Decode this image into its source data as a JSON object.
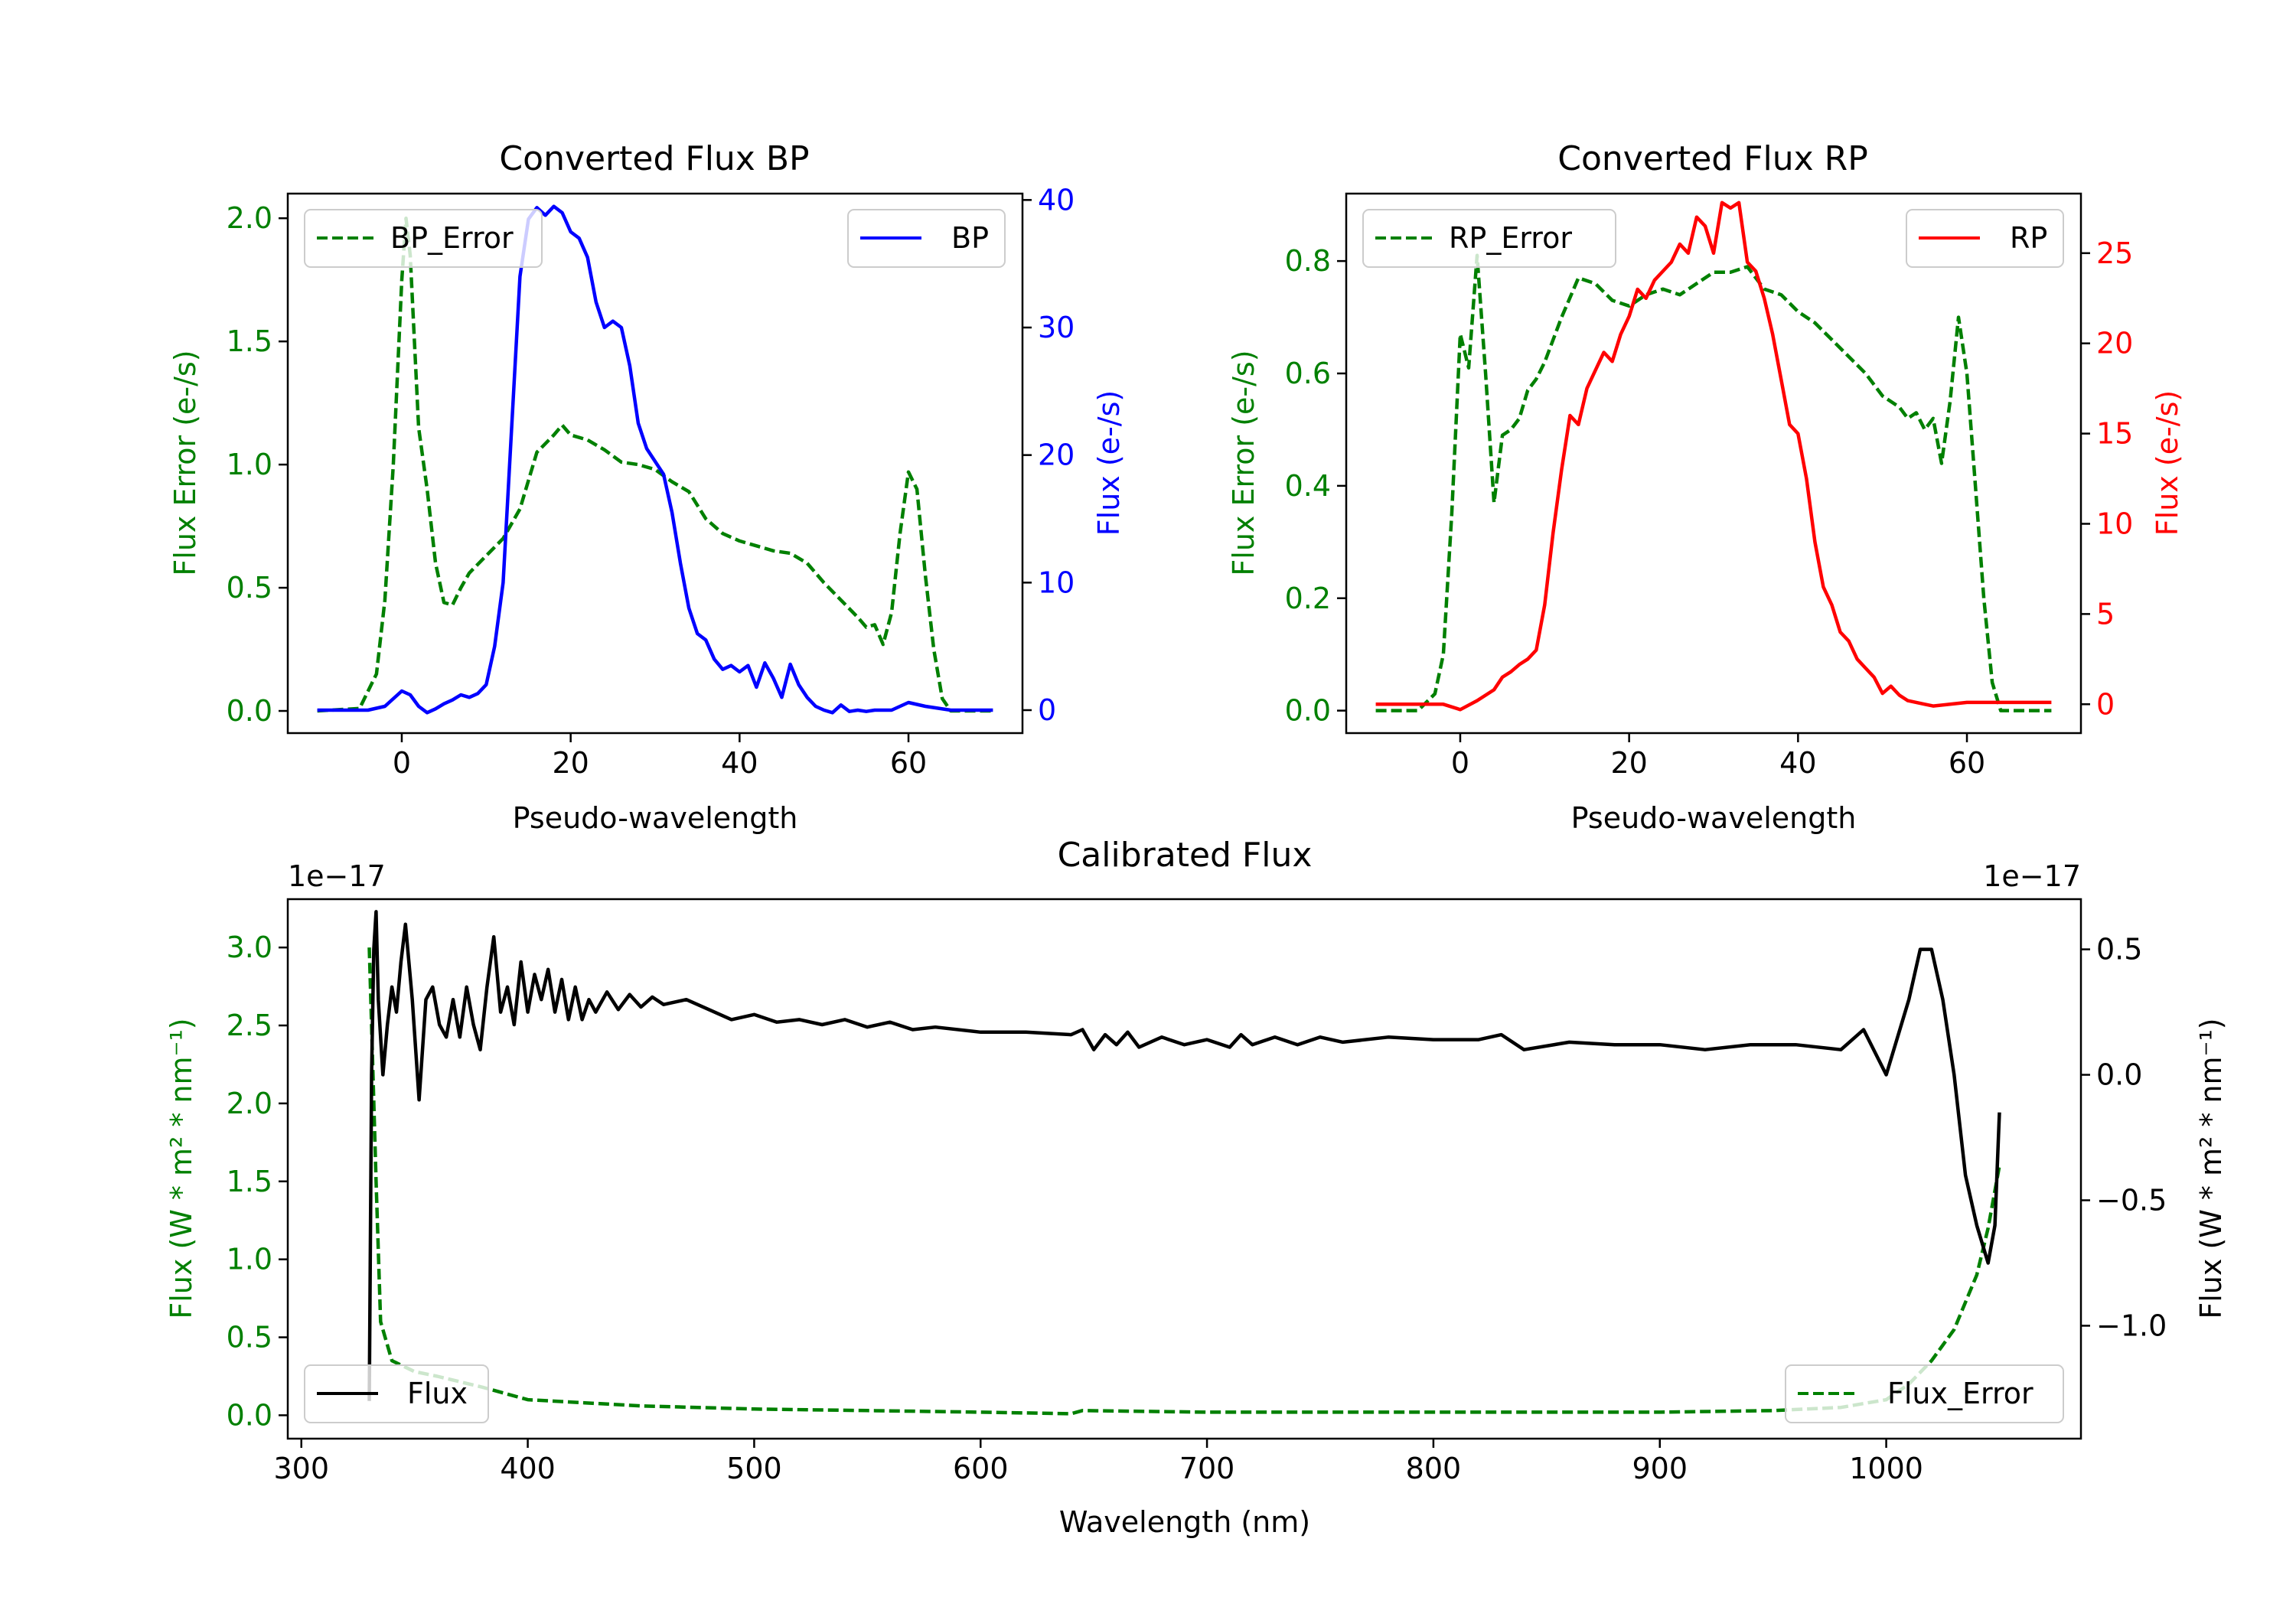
{
  "colors": {
    "error": "#008000",
    "bp": "#0000ff",
    "rp": "#ff0000",
    "flux": "#000000",
    "axis": "#000000"
  },
  "chart_data": [
    {
      "id": "bp",
      "type": "line",
      "title": "Converted Flux BP",
      "xlabel": "Pseudo-wavelength",
      "xlim": [
        -13.5,
        73.5
      ],
      "xticks": [
        0,
        20,
        40,
        60
      ],
      "left_axis": {
        "label": "Flux Error (e-/s)",
        "ylim": [
          -0.09,
          2.1
        ],
        "ticks": [
          0.0,
          0.5,
          1.0,
          1.5,
          2.0
        ],
        "tick_labels": [
          "0.0",
          "0.5",
          "1.0",
          "1.5",
          "2.0"
        ]
      },
      "right_axis": {
        "label": "Flux (e-/s)",
        "ylim": [
          -1.8,
          40.5
        ],
        "ticks": [
          0,
          10,
          20,
          30,
          40
        ],
        "tick_labels": [
          "0",
          "10",
          "20",
          "30",
          "40"
        ]
      },
      "legend_left": {
        "label": "BP_Error",
        "placement": "upper left"
      },
      "legend_right": {
        "label": "BP",
        "placement": "upper right"
      },
      "series": [
        {
          "name": "BP_Error",
          "axis": "left",
          "style": "dashed",
          "color": "error",
          "x": [
            -10,
            -5,
            -3,
            -2,
            -1,
            0,
            0.5,
            1,
            2,
            3,
            4,
            5,
            6,
            7,
            8,
            10,
            12,
            14,
            16,
            18,
            19,
            20,
            22,
            24,
            26,
            28,
            30,
            32,
            34,
            36,
            38,
            40,
            42,
            44,
            46,
            48,
            50,
            52,
            54,
            55,
            56,
            57,
            58,
            59,
            60,
            61,
            62,
            63,
            64,
            65,
            66,
            70
          ],
          "y": [
            0.0,
            0.01,
            0.15,
            0.45,
            1.0,
            1.75,
            2.0,
            1.85,
            1.15,
            0.9,
            0.6,
            0.44,
            0.43,
            0.5,
            0.56,
            0.63,
            0.7,
            0.82,
            1.05,
            1.12,
            1.16,
            1.12,
            1.1,
            1.06,
            1.01,
            1.0,
            0.98,
            0.93,
            0.89,
            0.78,
            0.72,
            0.69,
            0.67,
            0.65,
            0.64,
            0.6,
            0.52,
            0.45,
            0.38,
            0.34,
            0.35,
            0.27,
            0.4,
            0.72,
            0.97,
            0.9,
            0.55,
            0.25,
            0.05,
            0.0,
            0.0,
            0.0
          ]
        },
        {
          "name": "BP",
          "axis": "right",
          "style": "solid",
          "color": "bp",
          "x": [
            -10,
            -4,
            -2,
            0,
            1,
            2,
            3,
            4,
            5,
            6,
            7,
            8,
            9,
            10,
            11,
            12,
            13,
            14,
            15,
            16,
            17,
            18,
            19,
            20,
            21,
            22,
            23,
            24,
            25,
            26,
            27,
            28,
            29,
            30,
            31,
            32,
            33,
            34,
            35,
            36,
            37,
            38,
            39,
            40,
            41,
            42,
            43,
            44,
            45,
            46,
            47,
            48,
            49,
            50,
            51,
            52,
            53,
            54,
            55,
            56,
            58,
            60,
            62,
            65,
            70
          ],
          "y": [
            0,
            0,
            0.3,
            1.5,
            1.2,
            0.3,
            -0.2,
            0.1,
            0.5,
            0.8,
            1.2,
            1.0,
            1.3,
            2.0,
            5.0,
            10.0,
            22.0,
            34.0,
            38.5,
            39.4,
            38.8,
            39.5,
            39.0,
            37.5,
            37.0,
            35.5,
            32.0,
            30.0,
            30.5,
            30.0,
            27.0,
            22.5,
            20.5,
            19.5,
            18.5,
            15.5,
            11.5,
            8.0,
            6.0,
            5.5,
            4.0,
            3.2,
            3.5,
            3.0,
            3.5,
            1.8,
            3.7,
            2.5,
            1.0,
            3.6,
            2.0,
            1.0,
            0.3,
            0.0,
            -0.2,
            0.4,
            -0.1,
            0.0,
            -0.1,
            0.0,
            0.0,
            0.6,
            0.3,
            0.0,
            0.0
          ]
        }
      ]
    },
    {
      "id": "rp",
      "type": "line",
      "title": "Converted Flux RP",
      "xlabel": "Pseudo-wavelength",
      "xlim": [
        -13.5,
        73.5
      ],
      "xticks": [
        0,
        20,
        40,
        60
      ],
      "left_axis": {
        "label": "Flux Error (e-/s)",
        "ylim": [
          -0.04,
          0.92
        ],
        "ticks": [
          0.0,
          0.2,
          0.4,
          0.6,
          0.8
        ],
        "tick_labels": [
          "0.0",
          "0.2",
          "0.4",
          "0.6",
          "0.8"
        ]
      },
      "right_axis": {
        "label": "Flux (e-/s)",
        "ylim": [
          -1.6,
          28.3
        ],
        "ticks": [
          0,
          5,
          10,
          15,
          20,
          25
        ],
        "tick_labels": [
          "0",
          "5",
          "10",
          "15",
          "20",
          "25"
        ]
      },
      "legend_left": {
        "label": "RP_Error",
        "placement": "upper left"
      },
      "legend_right": {
        "label": "RP",
        "placement": "upper right"
      },
      "series": [
        {
          "name": "RP_Error",
          "axis": "left",
          "style": "dashed",
          "color": "error",
          "x": [
            -10,
            -5,
            -3,
            -2,
            -1,
            0,
            1,
            2,
            3,
            4,
            5,
            6,
            7,
            8,
            9,
            10,
            12,
            14,
            16,
            18,
            20,
            22,
            24,
            26,
            28,
            30,
            32,
            34,
            36,
            38,
            40,
            42,
            44,
            46,
            48,
            50,
            52,
            53,
            54,
            55,
            56,
            57,
            58,
            59,
            60,
            61,
            62,
            63,
            64,
            66,
            70
          ],
          "y": [
            0.0,
            0.0,
            0.03,
            0.1,
            0.35,
            0.67,
            0.61,
            0.81,
            0.6,
            0.37,
            0.49,
            0.5,
            0.52,
            0.57,
            0.59,
            0.62,
            0.7,
            0.77,
            0.76,
            0.73,
            0.72,
            0.74,
            0.75,
            0.74,
            0.76,
            0.78,
            0.78,
            0.79,
            0.75,
            0.74,
            0.71,
            0.69,
            0.66,
            0.63,
            0.6,
            0.56,
            0.54,
            0.52,
            0.53,
            0.5,
            0.52,
            0.44,
            0.55,
            0.7,
            0.6,
            0.4,
            0.2,
            0.05,
            0.0,
            0.0,
            0.0
          ]
        },
        {
          "name": "RP",
          "axis": "right",
          "style": "solid",
          "color": "rp",
          "x": [
            -10,
            -4,
            -2,
            0,
            2,
            4,
            5,
            6,
            7,
            8,
            9,
            10,
            11,
            12,
            13,
            14,
            15,
            16,
            17,
            18,
            19,
            20,
            21,
            22,
            23,
            24,
            25,
            26,
            27,
            28,
            29,
            30,
            31,
            32,
            33,
            34,
            35,
            36,
            37,
            38,
            39,
            40,
            41,
            42,
            43,
            44,
            45,
            46,
            47,
            48,
            49,
            50,
            51,
            52,
            53,
            54,
            55,
            56,
            58,
            60,
            62,
            66,
            70
          ],
          "y": [
            0,
            0,
            0,
            -0.3,
            0.2,
            0.8,
            1.5,
            1.8,
            2.2,
            2.5,
            3.0,
            5.5,
            9.5,
            13.0,
            16.0,
            15.5,
            17.5,
            18.5,
            19.5,
            19.0,
            20.5,
            21.5,
            23.0,
            22.5,
            23.5,
            24.0,
            24.5,
            25.5,
            25.0,
            27.0,
            26.5,
            25.0,
            27.8,
            27.5,
            27.8,
            24.5,
            24.0,
            22.5,
            20.5,
            18.0,
            15.5,
            15.0,
            12.5,
            9.0,
            6.5,
            5.5,
            4.0,
            3.5,
            2.5,
            2.0,
            1.5,
            0.6,
            1.0,
            0.5,
            0.2,
            0.1,
            0.0,
            -0.1,
            0.0,
            0.1,
            0.1,
            0.1,
            0.1
          ]
        }
      ]
    },
    {
      "id": "cal",
      "type": "line",
      "title": "Calibrated Flux",
      "xlabel": "Wavelength (nm)",
      "xlim": [
        294,
        1086
      ],
      "xticks": [
        300,
        400,
        500,
        600,
        700,
        800,
        900,
        1000
      ],
      "left_axis": {
        "label": "Flux (W * m² * nm⁻¹)",
        "offset_label": "1e−17",
        "ylim": [
          -0.15,
          3.31
        ],
        "ticks": [
          0.0,
          0.5,
          1.0,
          1.5,
          2.0,
          2.5,
          3.0
        ],
        "tick_labels": [
          "0.0",
          "0.5",
          "1.0",
          "1.5",
          "2.0",
          "2.5",
          "3.0"
        ]
      },
      "right_axis": {
        "label": "Flux (W * m² * nm⁻¹)",
        "offset_label": "1e−17",
        "ylim": [
          -1.45,
          0.7
        ],
        "ticks": [
          0.5,
          0.0,
          -0.5,
          -1.0
        ],
        "tick_labels": [
          "0.5",
          "0.0",
          "−0.5",
          "−1.0"
        ]
      },
      "legend_left": {
        "label": "Flux",
        "placement": "lower left"
      },
      "legend_right": {
        "label": "Flux_Error",
        "placement": "lower right"
      },
      "series": [
        {
          "name": "Flux_Error",
          "axis": "left",
          "style": "dashed",
          "color": "error",
          "x": [
            330,
            331,
            333,
            335,
            340,
            350,
            360,
            380,
            400,
            450,
            500,
            550,
            600,
            640,
            645,
            700,
            800,
            900,
            950,
            980,
            1000,
            1010,
            1020,
            1030,
            1040,
            1045,
            1050
          ],
          "y": [
            3.0,
            2.5,
            1.5,
            0.6,
            0.35,
            0.28,
            0.25,
            0.18,
            0.1,
            0.06,
            0.04,
            0.03,
            0.02,
            0.01,
            0.03,
            0.02,
            0.02,
            0.02,
            0.03,
            0.05,
            0.1,
            0.2,
            0.35,
            0.55,
            0.9,
            1.2,
            1.6
          ]
        },
        {
          "name": "Flux",
          "axis": "right",
          "style": "solid",
          "color": "flux",
          "x": [
            330,
            331,
            332,
            333,
            334,
            336,
            338,
            340,
            342,
            344,
            346,
            349,
            352,
            355,
            358,
            361,
            364,
            367,
            370,
            373,
            376,
            379,
            382,
            385,
            388,
            391,
            394,
            397,
            400,
            403,
            406,
            409,
            412,
            415,
            418,
            421,
            424,
            427,
            430,
            435,
            440,
            445,
            450,
            455,
            460,
            470,
            480,
            490,
            500,
            510,
            520,
            530,
            540,
            550,
            560,
            570,
            580,
            600,
            620,
            640,
            645,
            650,
            655,
            660,
            665,
            670,
            680,
            690,
            700,
            710,
            715,
            720,
            730,
            740,
            750,
            760,
            780,
            800,
            820,
            830,
            840,
            860,
            880,
            900,
            920,
            940,
            960,
            980,
            990,
            1000,
            1010,
            1015,
            1020,
            1025,
            1030,
            1035,
            1040,
            1045,
            1048,
            1050
          ],
          "y": [
            -1.3,
            0.0,
            0.5,
            0.65,
            0.3,
            0.0,
            0.2,
            0.35,
            0.25,
            0.45,
            0.6,
            0.3,
            -0.1,
            0.3,
            0.35,
            0.2,
            0.15,
            0.3,
            0.15,
            0.35,
            0.2,
            0.1,
            0.35,
            0.55,
            0.25,
            0.35,
            0.2,
            0.45,
            0.25,
            0.4,
            0.3,
            0.42,
            0.25,
            0.38,
            0.22,
            0.35,
            0.22,
            0.3,
            0.25,
            0.33,
            0.26,
            0.32,
            0.27,
            0.31,
            0.28,
            0.3,
            0.26,
            0.22,
            0.24,
            0.21,
            0.22,
            0.2,
            0.22,
            0.19,
            0.21,
            0.18,
            0.19,
            0.17,
            0.17,
            0.16,
            0.18,
            0.1,
            0.16,
            0.12,
            0.17,
            0.11,
            0.15,
            0.12,
            0.14,
            0.11,
            0.16,
            0.12,
            0.15,
            0.12,
            0.15,
            0.13,
            0.15,
            0.14,
            0.14,
            0.16,
            0.1,
            0.13,
            0.12,
            0.12,
            0.1,
            0.12,
            0.12,
            0.1,
            0.18,
            0.0,
            0.3,
            0.5,
            0.5,
            0.3,
            0.0,
            -0.4,
            -0.6,
            -0.75,
            -0.6,
            -0.15
          ]
        }
      ]
    }
  ]
}
